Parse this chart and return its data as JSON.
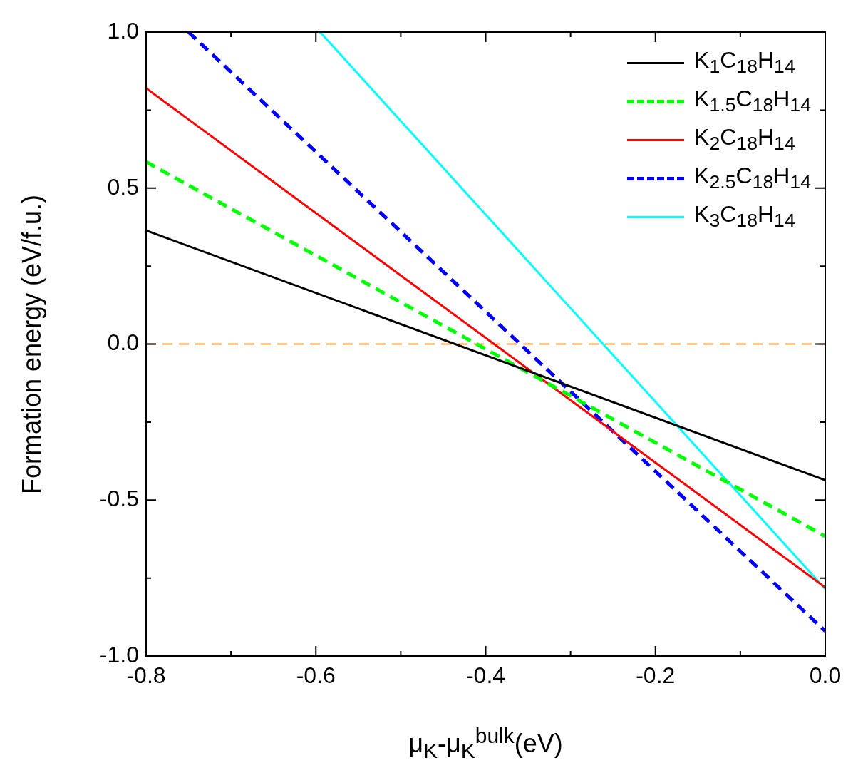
{
  "chart_data": {
    "type": "line",
    "xlabel": "μ$_{K}$-μ$_{K}$$^{bulk}$(eV)",
    "ylabel": "Formation energy (eV/f.u.)",
    "series": [
      {
        "name": "K$_{1}$C$_{18}$H$_{14}$",
        "color": "#000000",
        "line_style": "solid",
        "x": [
          -0.8,
          0
        ],
        "values": [
          0.364,
          -0.436
        ]
      },
      {
        "name": "K$_{1.5}$C$_{18}$H$_{14}$",
        "color": "#00ff00",
        "line_style": "dashed",
        "x": [
          -0.8,
          0
        ],
        "values": [
          0.584,
          -0.616
        ]
      },
      {
        "name": "K$_{2}$C$_{18}$H$_{14}$",
        "color": "#ff0000",
        "line_style": "solid",
        "x": [
          -0.8,
          0
        ],
        "values": [
          0.82,
          -0.78
        ]
      },
      {
        "name": "K$_{2.5}$C$_{18}$H$_{14}$",
        "color": "#0000ff",
        "line_style": "dashed",
        "x": [
          -0.75,
          0
        ],
        "values": [
          1.0,
          -0.92
        ]
      },
      {
        "name": "K$_{3}$C$_{18}$H$_{14}$",
        "color": "#00ffff",
        "line_style": "solid",
        "x": [
          -0.595,
          0
        ],
        "values": [
          1.0,
          -0.785
        ]
      }
    ],
    "xlim": [
      -0.8,
      0
    ],
    "xticks": [
      -0.8,
      {
        "value": -0.7,
        "label": null
      },
      -0.6,
      {
        "value": -0.5,
        "label": null
      },
      -0.4,
      {
        "value": -0.3,
        "label": null
      },
      -0.2,
      {
        "value": -0.1,
        "label": null
      },
      {
        "value": 0,
        "label": "0.0"
      }
    ],
    "ylim": [
      -1,
      1
    ],
    "yticks": [
      {
        "value": -1,
        "label": "-1.0"
      },
      {
        "value": -0.75,
        "label": null
      },
      -0.5,
      {
        "value": -0.25,
        "label": null
      },
      {
        "value": 0,
        "label": "0.0"
      },
      {
        "value": 0.25,
        "label": null
      },
      0.5,
      {
        "value": 0.75,
        "label": null
      },
      {
        "value": 1,
        "label": "1.0"
      }
    ],
    "ref_lines": [
      {
        "axis": "y",
        "value": 0,
        "color": "#ff9933",
        "line_style": "dashed"
      }
    ],
    "legend": "top right",
    "marker": "none",
    "grid": false
  }
}
